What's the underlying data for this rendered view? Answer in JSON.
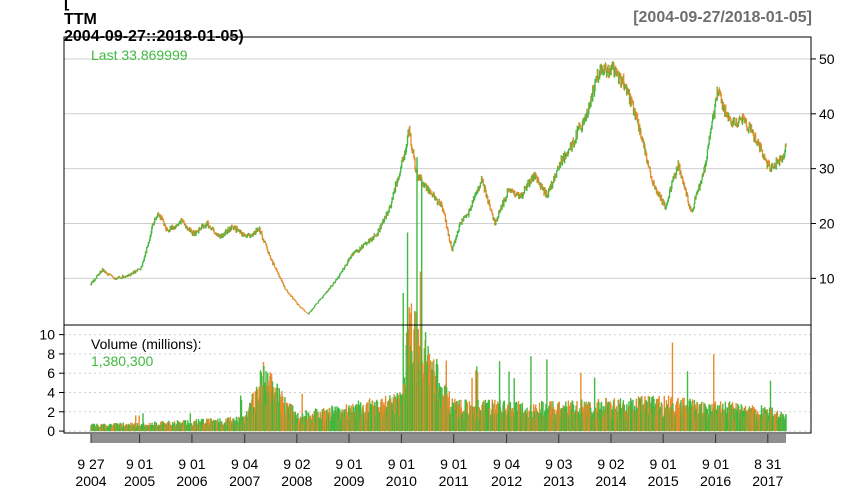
{
  "header": {
    "title_lines": [
      "[",
      "TTM",
      "2004-09-27::2018-01-05)"
    ],
    "range": "[2004-09-27/2018-01-05]"
  },
  "price_panel": {
    "last_label": "Last 33.869999",
    "y_ticks": [
      10,
      20,
      30,
      40,
      50
    ]
  },
  "volume_panel": {
    "label": "Volume (millions):",
    "last_volume": "1,380,300",
    "y_ticks": [
      0,
      2,
      4,
      6,
      8,
      10
    ]
  },
  "x_axis": {
    "ticks": [
      {
        "md": "9 27",
        "year": "2004",
        "date": "2004-09-27"
      },
      {
        "md": "9 01",
        "year": "2005",
        "date": "2005-09-01"
      },
      {
        "md": "9 01",
        "year": "2006",
        "date": "2006-09-01"
      },
      {
        "md": "9 04",
        "year": "2007",
        "date": "2007-09-04"
      },
      {
        "md": "9 02",
        "year": "2008",
        "date": "2008-09-02"
      },
      {
        "md": "9 01",
        "year": "2009",
        "date": "2009-09-01"
      },
      {
        "md": "9 01",
        "year": "2010",
        "date": "2010-09-01"
      },
      {
        "md": "9 01",
        "year": "2011",
        "date": "2011-09-01"
      },
      {
        "md": "9 04",
        "year": "2012",
        "date": "2012-09-04"
      },
      {
        "md": "9 03",
        "year": "2013",
        "date": "2013-09-03"
      },
      {
        "md": "9 02",
        "year": "2014",
        "date": "2014-09-02"
      },
      {
        "md": "9 01",
        "year": "2015",
        "date": "2015-09-01"
      },
      {
        "md": "9 01",
        "year": "2016",
        "date": "2016-09-01"
      },
      {
        "md": "8 31",
        "year": "2017",
        "date": "2017-08-31"
      }
    ]
  },
  "colors": {
    "up": "#3fb93f",
    "down": "#e88a2a",
    "last_text": "#3fb93f",
    "grid": "#cfcfcf",
    "range_text": "#6e6e6e",
    "axis_bar": "#8f8f8f"
  },
  "chart_data": {
    "type": "line",
    "subtype": "candlestick-with-volume",
    "x_start": "2004-09-27",
    "x_end": "2018-01-05",
    "price_ylim": [
      1.5,
      54
    ],
    "volume_ylim": [
      -0.2,
      11
    ],
    "price_series": {
      "x": [
        "2004-09-27",
        "2004-12-15",
        "2005-03-15",
        "2005-06-15",
        "2005-09-15",
        "2005-12-15",
        "2006-01-20",
        "2006-03-15",
        "2006-06-15",
        "2006-09-15",
        "2006-12-15",
        "2007-03-15",
        "2007-06-15",
        "2007-09-15",
        "2007-12-15",
        "2008-03-15",
        "2008-06-15",
        "2008-09-15",
        "2008-11-20",
        "2009-03-09",
        "2009-06-15",
        "2009-09-15",
        "2009-12-15",
        "2010-03-15",
        "2010-06-15",
        "2010-09-15",
        "2010-10-25",
        "2010-12-15",
        "2011-03-15",
        "2011-06-15",
        "2011-08-20",
        "2011-10-15",
        "2011-12-15",
        "2012-03-15",
        "2012-06-15",
        "2012-09-15",
        "2012-12-15",
        "2013-03-15",
        "2013-06-15",
        "2013-09-15",
        "2013-12-15",
        "2014-03-15",
        "2014-06-15",
        "2014-09-15",
        "2014-12-15",
        "2015-03-15",
        "2015-06-15",
        "2015-09-15",
        "2015-12-15",
        "2016-03-15",
        "2016-06-15",
        "2016-09-15",
        "2016-12-15",
        "2017-03-15",
        "2017-06-15",
        "2017-09-15",
        "2017-12-15",
        "2018-01-05"
      ],
      "values": [
        9.0,
        11.5,
        10.0,
        10.5,
        12.0,
        21.0,
        21.5,
        18.5,
        20.5,
        18.0,
        20.0,
        17.5,
        19.5,
        17.5,
        19.0,
        13.0,
        8.0,
        5.0,
        3.5,
        7.0,
        10.0,
        14.0,
        16.0,
        18.0,
        23.0,
        32.0,
        37.0,
        29.0,
        26.0,
        23.0,
        15.0,
        20.0,
        22.0,
        28.0,
        20.0,
        26.0,
        25.0,
        29.0,
        25.0,
        31.0,
        35.0,
        40.0,
        48.0,
        48.0,
        45.0,
        38.0,
        28.0,
        23.0,
        31.0,
        22.0,
        30.0,
        44.0,
        38.0,
        39.0,
        35.0,
        30.0,
        32.0,
        33.87
      ]
    },
    "volume_series": {
      "x": [
        "2004-09-27",
        "2005-09-01",
        "2006-09-01",
        "2007-09-04",
        "2008-01-15",
        "2008-09-02",
        "2009-09-01",
        "2010-09-01",
        "2010-10-25",
        "2011-09-01",
        "2012-09-04",
        "2013-09-03",
        "2014-09-02",
        "2015-09-01",
        "2016-09-01",
        "2017-08-31",
        "2018-01-05"
      ],
      "values": [
        0.6,
        0.7,
        0.9,
        1.2,
        5.5,
        1.5,
        2.2,
        3.0,
        10.6,
        2.5,
        2.4,
        2.3,
        2.6,
        2.8,
        2.4,
        2.0,
        1.38
      ]
    }
  }
}
